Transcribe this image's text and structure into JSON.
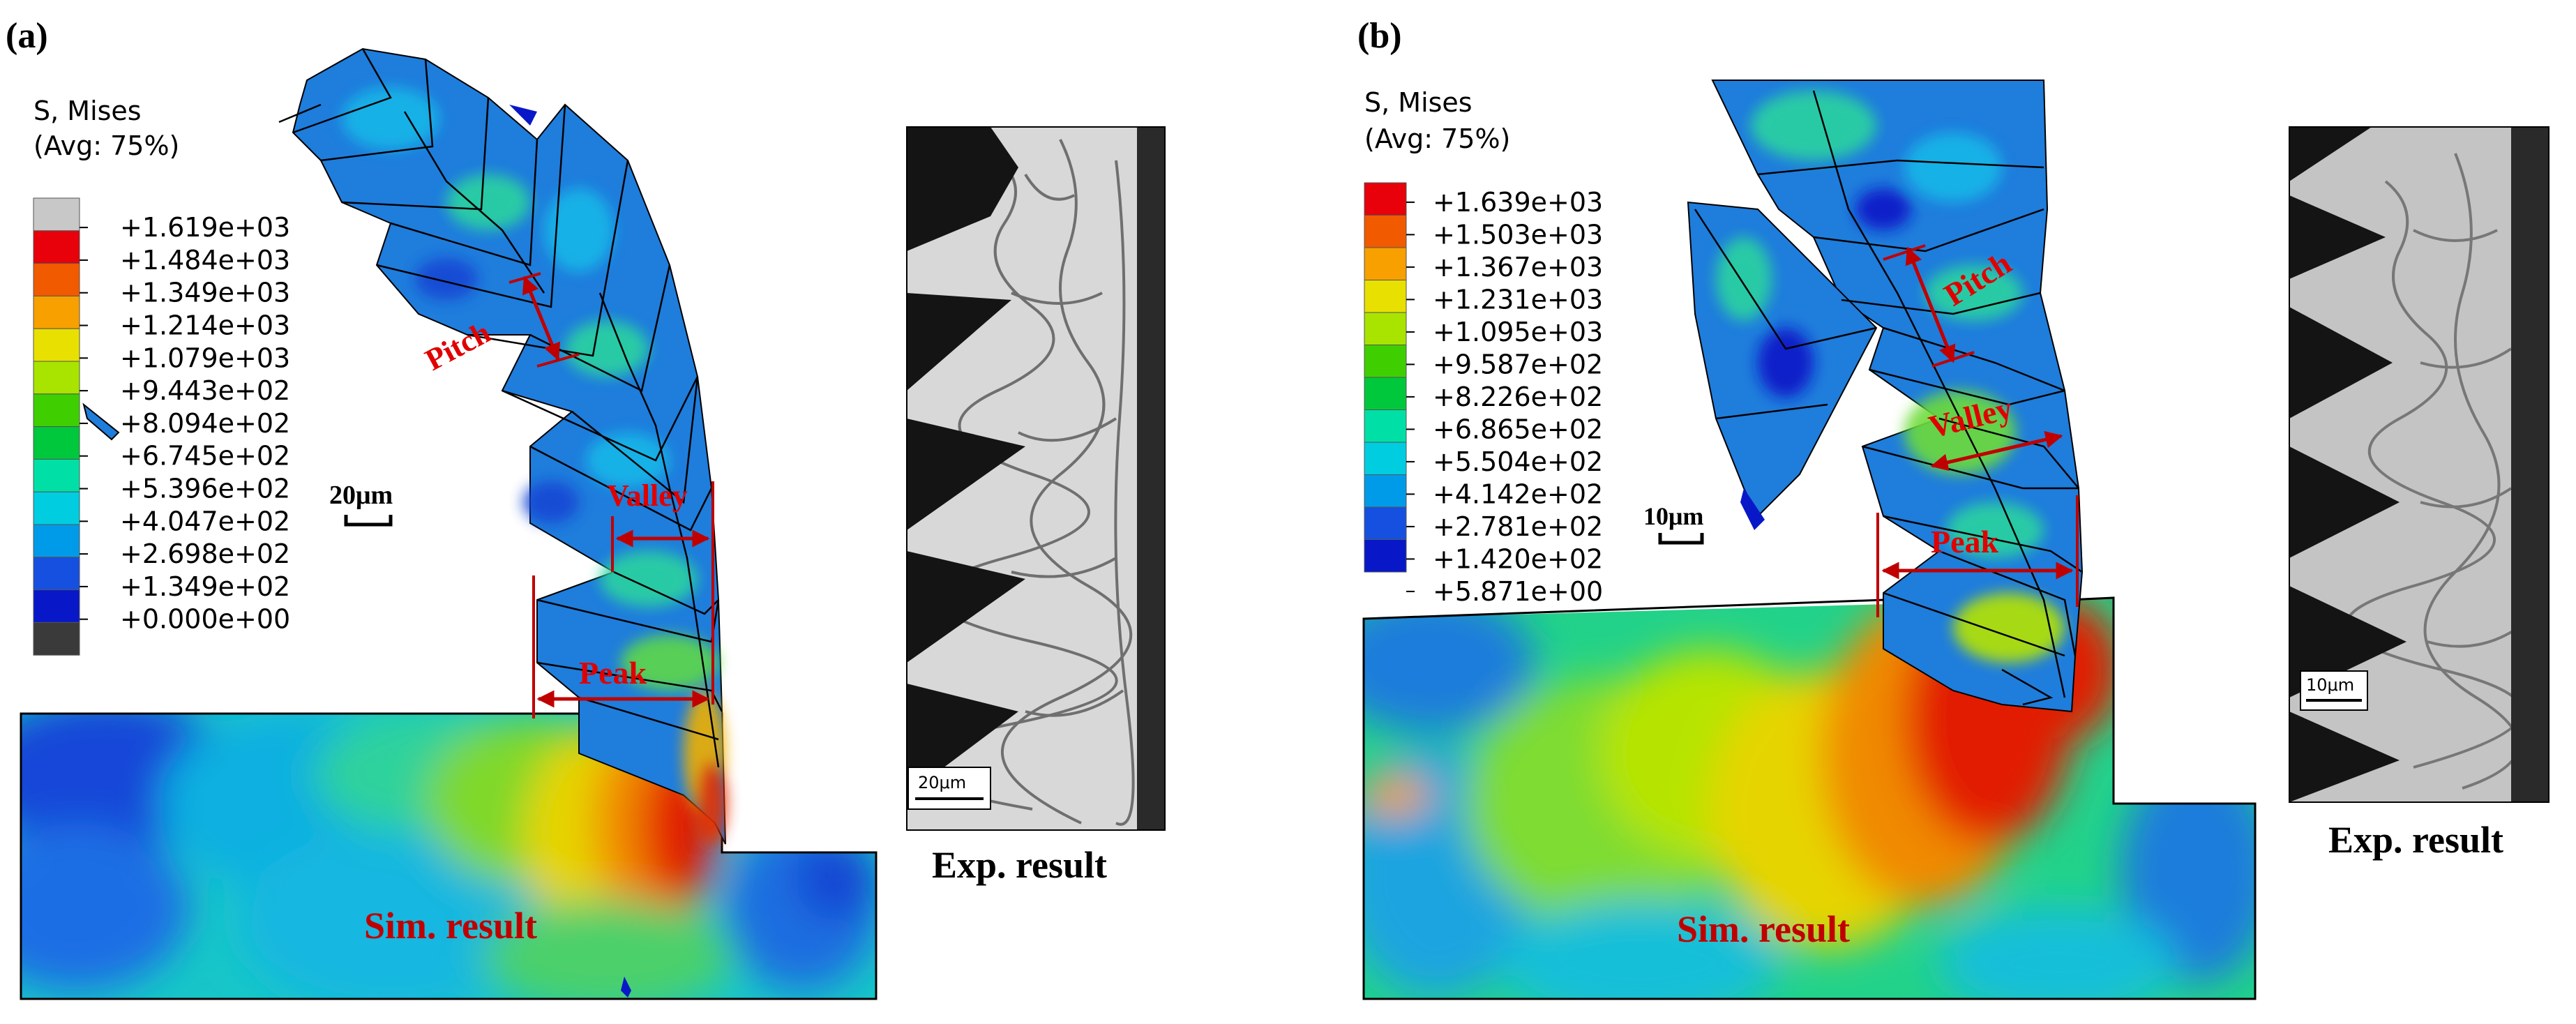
{
  "panels": [
    {
      "id": "a",
      "label": "(a)",
      "legend": {
        "title_line1": "S, Mises",
        "title_line2": "(Avg: 75%)",
        "values": [
          "+1.619e+03",
          "+1.484e+03",
          "+1.349e+03",
          "+1.214e+03",
          "+1.079e+03",
          "+9.443e+02",
          "+8.094e+02",
          "+6.745e+02",
          "+5.396e+02",
          "+4.047e+02",
          "+2.698e+02",
          "+1.349e+02",
          "+0.000e+00"
        ],
        "colors": [
          "#c8c8c8",
          "#e8000a",
          "#f25a00",
          "#f7a000",
          "#e8e000",
          "#a8e400",
          "#3fcf00",
          "#00c83c",
          "#00e0a6",
          "#00cde0",
          "#009be8",
          "#1650e0",
          "#0818c8",
          "#3a3a3a"
        ]
      },
      "scale_bar": "20μm",
      "exp_scale_bar": "20μm",
      "annotations": {
        "pitch": "Pitch",
        "valley": "Valley",
        "peak": "Peak"
      },
      "sim_caption": "Sim. result",
      "exp_caption": "Exp. result"
    },
    {
      "id": "b",
      "label": "(b)",
      "legend": {
        "title_line1": "S, Mises",
        "title_line2": "(Avg: 75%)",
        "values": [
          "+1.639e+03",
          "+1.503e+03",
          "+1.367e+03",
          "+1.231e+03",
          "+1.095e+03",
          "+9.587e+02",
          "+8.226e+02",
          "+6.865e+02",
          "+5.504e+02",
          "+4.142e+02",
          "+2.781e+02",
          "+1.420e+02",
          "+5.871e+00"
        ],
        "colors": [
          "#e8000a",
          "#f25a00",
          "#f7a000",
          "#e8e000",
          "#a8e400",
          "#3fcf00",
          "#00c83c",
          "#00e0a6",
          "#00cde0",
          "#009be8",
          "#1650e0",
          "#0818c8"
        ]
      },
      "scale_bar": "10μm",
      "exp_scale_bar": "10μm",
      "annotations": {
        "pitch": "Pitch",
        "valley": "Valley",
        "peak": "Peak"
      },
      "sim_caption": "Sim. result",
      "exp_caption": "Exp. result"
    }
  ]
}
